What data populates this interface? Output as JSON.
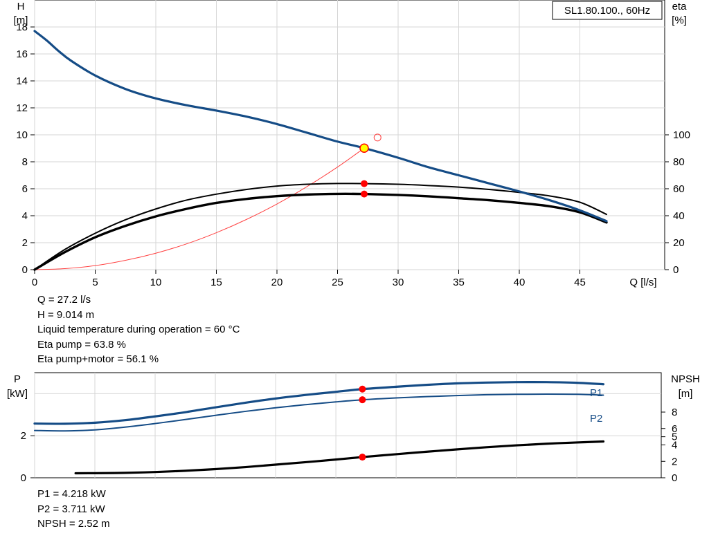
{
  "chart_data": [
    {
      "type": "line",
      "legend_box": "SL1.80.100., 60Hz",
      "y_axis_left": {
        "title_line1": "H",
        "title_line2": "[m]",
        "ticks": [
          0,
          2,
          4,
          6,
          8,
          10,
          12,
          14,
          16,
          18
        ],
        "range": [
          0,
          20
        ]
      },
      "y_axis_right": {
        "title_line1": "eta",
        "title_line2": "[%]",
        "ticks": [
          0,
          20,
          40,
          60,
          80,
          100
        ],
        "range": [
          0,
          200
        ]
      },
      "x_axis": {
        "title": "Q [l/s]",
        "ticks": [
          0,
          5,
          10,
          15,
          20,
          25,
          30,
          35,
          40,
          45
        ],
        "range": [
          0,
          52
        ]
      },
      "grid": true,
      "series": [
        {
          "key": "head",
          "axis": "left",
          "color": "#154c86",
          "x": [
            0,
            1,
            2,
            3,
            5,
            7.5,
            10,
            12.5,
            15,
            17.5,
            20,
            22.5,
            25,
            27.2,
            30,
            32.5,
            35,
            37.5,
            40,
            42.5,
            45,
            47.2
          ],
          "y": [
            17.7,
            17.0,
            16.2,
            15.5,
            14.4,
            13.4,
            12.7,
            12.2,
            11.8,
            11.35,
            10.8,
            10.15,
            9.5,
            9.014,
            8.3,
            7.6,
            7.0,
            6.4,
            5.8,
            5.15,
            4.4,
            3.6
          ]
        },
        {
          "key": "eta_pump",
          "axis": "right",
          "color": "#000000",
          "x": [
            0,
            2.5,
            5,
            7.5,
            10,
            12.5,
            15,
            17.5,
            20,
            22.5,
            25,
            27.2,
            30,
            32.5,
            35,
            37.5,
            40,
            42.5,
            45,
            47.2
          ],
          "y": [
            0,
            15,
            27,
            37,
            45,
            51.5,
            56,
            59.5,
            62,
            63.3,
            63.9,
            63.8,
            63.3,
            62.4,
            61.2,
            59.5,
            57.3,
            54.7,
            50,
            41
          ]
        },
        {
          "key": "eta_pump_motor",
          "axis": "right",
          "color": "#000000",
          "x": [
            0,
            2.5,
            5,
            7.5,
            10,
            12.5,
            15,
            17.5,
            20,
            22.5,
            25,
            27.2,
            30,
            32.5,
            35,
            37.5,
            40,
            42.5,
            45,
            47.2
          ],
          "y": [
            0,
            13,
            24,
            32.5,
            39.5,
            45,
            49.5,
            52.5,
            54.5,
            55.7,
            56.2,
            56.1,
            55.4,
            54.4,
            53,
            51.5,
            49.5,
            47,
            42.5,
            35
          ]
        },
        {
          "key": "system_curve",
          "axis": "left",
          "color": "#ff4040",
          "x": [
            0,
            2.5,
            5,
            7.5,
            10,
            12.5,
            15,
            17.5,
            20,
            22.5,
            25,
            27.2
          ],
          "y": [
            0,
            0.08,
            0.3,
            0.69,
            1.22,
            1.9,
            2.74,
            3.73,
            4.87,
            6.17,
            7.61,
            9.014
          ]
        }
      ],
      "operating_point": {
        "x": 27.2,
        "head": 9.014,
        "eta_pump": 63.8,
        "eta_pump_motor": 56.1
      },
      "reference_point": {
        "x": 28.3,
        "head": 9.8
      },
      "readouts": [
        "Q = 27.2 l/s",
        "H = 9.014 m",
        "Liquid temperature during operation = 60 °C",
        "Eta pump = 63.8 %",
        "Eta pump+motor = 56.1 %"
      ]
    },
    {
      "type": "line",
      "y_axis_left": {
        "title_line1": "P",
        "title_line2": "[kW]",
        "ticks": [
          0,
          2
        ],
        "range": [
          0,
          5
        ]
      },
      "y_axis_right": {
        "title_line1": "NPSH",
        "title_line2": "[m]",
        "ticks": [
          0,
          2,
          4,
          5,
          6,
          8
        ],
        "range": [
          0,
          12.8
        ]
      },
      "x_axis": {
        "range": [
          0,
          52
        ]
      },
      "grid": true,
      "series": [
        {
          "key": "p1",
          "name": "P1",
          "axis": "left",
          "color": "#154c86",
          "x": [
            0,
            2.5,
            5,
            7.5,
            10,
            12.5,
            15,
            17.5,
            20,
            22.5,
            25,
            27.2,
            30,
            32.5,
            35,
            37.5,
            40,
            42.5,
            45,
            47.2
          ],
          "y": [
            2.58,
            2.57,
            2.62,
            2.74,
            2.92,
            3.12,
            3.35,
            3.57,
            3.77,
            3.94,
            4.09,
            4.218,
            4.33,
            4.42,
            4.49,
            4.53,
            4.55,
            4.55,
            4.52,
            4.45
          ]
        },
        {
          "key": "p2",
          "name": "P2",
          "axis": "left",
          "color": "#154c86",
          "x": [
            0,
            2.5,
            5,
            7.5,
            10,
            12.5,
            15,
            17.5,
            20,
            22.5,
            25,
            27.2,
            30,
            32.5,
            35,
            37.5,
            40,
            42.5,
            45,
            47.2
          ],
          "y": [
            2.25,
            2.23,
            2.28,
            2.41,
            2.58,
            2.77,
            2.97,
            3.16,
            3.33,
            3.48,
            3.61,
            3.711,
            3.8,
            3.86,
            3.91,
            3.95,
            3.97,
            3.98,
            3.97,
            3.93
          ]
        },
        {
          "key": "npsh",
          "axis": "right",
          "color": "#000000",
          "x": [
            3.4,
            5,
            7.5,
            10,
            12.5,
            15,
            17.5,
            20,
            22.5,
            25,
            27.2,
            30,
            32.5,
            35,
            37.5,
            40,
            42.5,
            45,
            47.2
          ],
          "y": [
            0.55,
            0.56,
            0.6,
            0.7,
            0.85,
            1.05,
            1.3,
            1.6,
            1.9,
            2.22,
            2.52,
            2.87,
            3.17,
            3.45,
            3.72,
            3.95,
            4.15,
            4.3,
            4.42
          ]
        }
      ],
      "operating_point": {
        "x": 27.2,
        "p1": 4.218,
        "p2": 3.711,
        "npsh": 2.52
      },
      "readouts": [
        "P1 = 4.218 kW",
        "P2 = 3.711 kW",
        "NPSH = 2.52 m"
      ]
    }
  ]
}
